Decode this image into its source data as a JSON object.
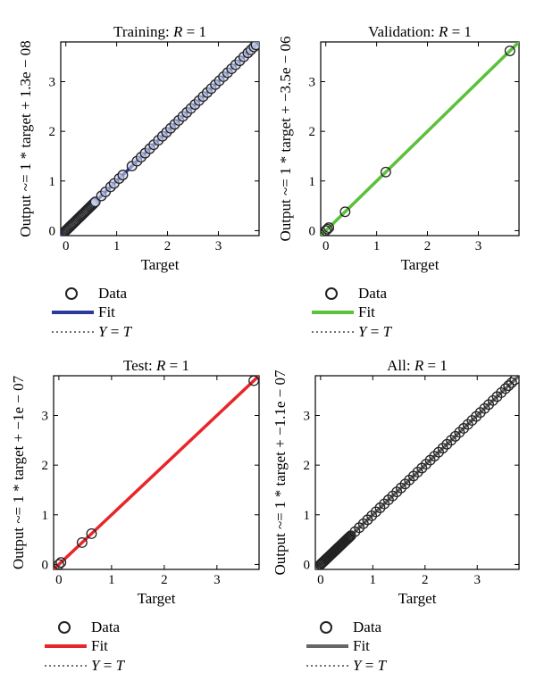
{
  "chart_data": [
    {
      "type": "scatter",
      "title": "Training: R = 1",
      "title_prefix": "Training: ",
      "title_italic": "R",
      "title_suffix": " = 1",
      "xlabel": "Target",
      "ylabel": "Output ~= 1 * target + 1.3e − 08",
      "xlim": [
        -0.1,
        3.8
      ],
      "ylim": [
        -0.1,
        3.8
      ],
      "xticks": [
        0,
        1,
        2,
        3
      ],
      "yticks": [
        0,
        1,
        2,
        3
      ],
      "grid": false,
      "fit_color": "#2b3a9a",
      "marker_fill": "#c8d0f0",
      "legend": [
        "Data",
        "Fit",
        "Y = T"
      ],
      "data_points": "dense",
      "x": [
        0.0,
        0.02,
        0.04,
        0.06,
        0.08,
        0.1,
        0.12,
        0.14,
        0.16,
        0.18,
        0.2,
        0.22,
        0.24,
        0.26,
        0.28,
        0.3,
        0.32,
        0.34,
        0.36,
        0.38,
        0.4,
        0.42,
        0.44,
        0.46,
        0.48,
        0.5,
        0.52,
        0.54,
        0.56,
        0.58,
        0.7,
        0.78,
        0.88,
        0.95,
        1.05,
        1.12,
        1.3,
        1.4,
        1.48,
        1.56,
        1.65,
        1.73,
        1.82,
        1.9,
        1.98,
        2.06,
        2.14,
        2.22,
        2.3,
        2.38,
        2.46,
        2.54,
        2.62,
        2.7,
        2.78,
        2.86,
        2.94,
        3.02,
        3.1,
        3.18,
        3.26,
        3.34,
        3.42,
        3.5,
        3.58,
        3.64,
        3.7,
        3.74
      ],
      "y": [
        0.0,
        0.02,
        0.04,
        0.06,
        0.08,
        0.1,
        0.12,
        0.14,
        0.16,
        0.18,
        0.2,
        0.22,
        0.24,
        0.26,
        0.28,
        0.3,
        0.32,
        0.34,
        0.36,
        0.38,
        0.4,
        0.42,
        0.44,
        0.46,
        0.48,
        0.5,
        0.52,
        0.54,
        0.56,
        0.58,
        0.7,
        0.78,
        0.88,
        0.95,
        1.05,
        1.12,
        1.3,
        1.4,
        1.48,
        1.56,
        1.65,
        1.73,
        1.82,
        1.9,
        1.98,
        2.06,
        2.14,
        2.22,
        2.3,
        2.38,
        2.46,
        2.54,
        2.62,
        2.7,
        2.78,
        2.86,
        2.94,
        3.02,
        3.1,
        3.18,
        3.26,
        3.34,
        3.42,
        3.5,
        3.58,
        3.64,
        3.7,
        3.74
      ]
    },
    {
      "type": "scatter",
      "title": "Validation: R = 1",
      "title_prefix": "Validation: ",
      "title_italic": "R",
      "title_suffix": " = 1",
      "xlabel": "Target",
      "ylabel": "Output ~= 1 * target + −3.5e − 06",
      "xlim": [
        -0.1,
        3.8
      ],
      "ylim": [
        -0.1,
        3.8
      ],
      "xticks": [
        0,
        1,
        2,
        3
      ],
      "yticks": [
        0,
        1,
        2,
        3
      ],
      "grid": false,
      "fit_color": "#5cc13a",
      "marker_fill": "none",
      "legend": [
        "Data",
        "Fit",
        "Y = T"
      ],
      "x": [
        0.0,
        0.03,
        0.06,
        0.38,
        1.18,
        3.62
      ],
      "y": [
        0.0,
        0.03,
        0.06,
        0.38,
        1.18,
        3.62
      ]
    },
    {
      "type": "scatter",
      "title": "Test: R = 1",
      "title_prefix": "Test: ",
      "title_italic": "R",
      "title_suffix": " = 1",
      "xlabel": "Target",
      "ylabel": "Output ~= 1 * target + −1e − 07",
      "xlim": [
        -0.1,
        3.8
      ],
      "ylim": [
        -0.1,
        3.8
      ],
      "xticks": [
        0,
        1,
        2,
        3
      ],
      "yticks": [
        0,
        1,
        2,
        3
      ],
      "grid": false,
      "fit_color": "#e8262a",
      "marker_fill": "none",
      "legend": [
        "Data",
        "Fit",
        "Y = T"
      ],
      "x": [
        0.0,
        0.04,
        0.44,
        0.62,
        3.7
      ],
      "y": [
        0.0,
        0.04,
        0.44,
        0.62,
        3.7
      ]
    },
    {
      "type": "scatter",
      "title": "All: R = 1",
      "title_prefix": "All: ",
      "title_italic": "R",
      "title_suffix": " = 1",
      "xlabel": "Target",
      "ylabel": "Output ~= 1 * target + −1.1e − 07",
      "xlim": [
        -0.1,
        3.8
      ],
      "ylim": [
        -0.1,
        3.8
      ],
      "xticks": [
        0,
        1,
        2,
        3
      ],
      "yticks": [
        0,
        1,
        2,
        3
      ],
      "grid": false,
      "fit_color": "#666666",
      "marker_fill": "none",
      "legend": [
        "Data",
        "Fit",
        "Y = T"
      ],
      "x": [
        0.0,
        0.02,
        0.04,
        0.06,
        0.08,
        0.1,
        0.12,
        0.14,
        0.16,
        0.18,
        0.2,
        0.22,
        0.24,
        0.26,
        0.28,
        0.3,
        0.32,
        0.34,
        0.36,
        0.38,
        0.4,
        0.42,
        0.44,
        0.46,
        0.48,
        0.5,
        0.52,
        0.54,
        0.56,
        0.58,
        0.66,
        0.74,
        0.82,
        0.9,
        0.98,
        1.06,
        1.14,
        1.22,
        1.3,
        1.38,
        1.46,
        1.54,
        1.62,
        1.7,
        1.78,
        1.86,
        1.94,
        2.02,
        2.1,
        2.18,
        2.26,
        2.34,
        2.42,
        2.5,
        2.58,
        2.66,
        2.74,
        2.82,
        2.9,
        2.98,
        3.06,
        3.14,
        3.22,
        3.3,
        3.38,
        3.46,
        3.54,
        3.6,
        3.66,
        3.72
      ],
      "y": [
        0.0,
        0.02,
        0.04,
        0.06,
        0.08,
        0.1,
        0.12,
        0.14,
        0.16,
        0.18,
        0.2,
        0.22,
        0.24,
        0.26,
        0.28,
        0.3,
        0.32,
        0.34,
        0.36,
        0.38,
        0.4,
        0.42,
        0.44,
        0.46,
        0.48,
        0.5,
        0.52,
        0.54,
        0.56,
        0.58,
        0.66,
        0.74,
        0.82,
        0.9,
        0.98,
        1.06,
        1.14,
        1.22,
        1.3,
        1.38,
        1.46,
        1.54,
        1.62,
        1.7,
        1.78,
        1.86,
        1.94,
        2.02,
        2.1,
        2.18,
        2.26,
        2.34,
        2.42,
        2.5,
        2.58,
        2.66,
        2.74,
        2.82,
        2.9,
        2.98,
        3.06,
        3.14,
        3.22,
        3.3,
        3.38,
        3.46,
        3.54,
        3.6,
        3.66,
        3.72
      ]
    }
  ]
}
